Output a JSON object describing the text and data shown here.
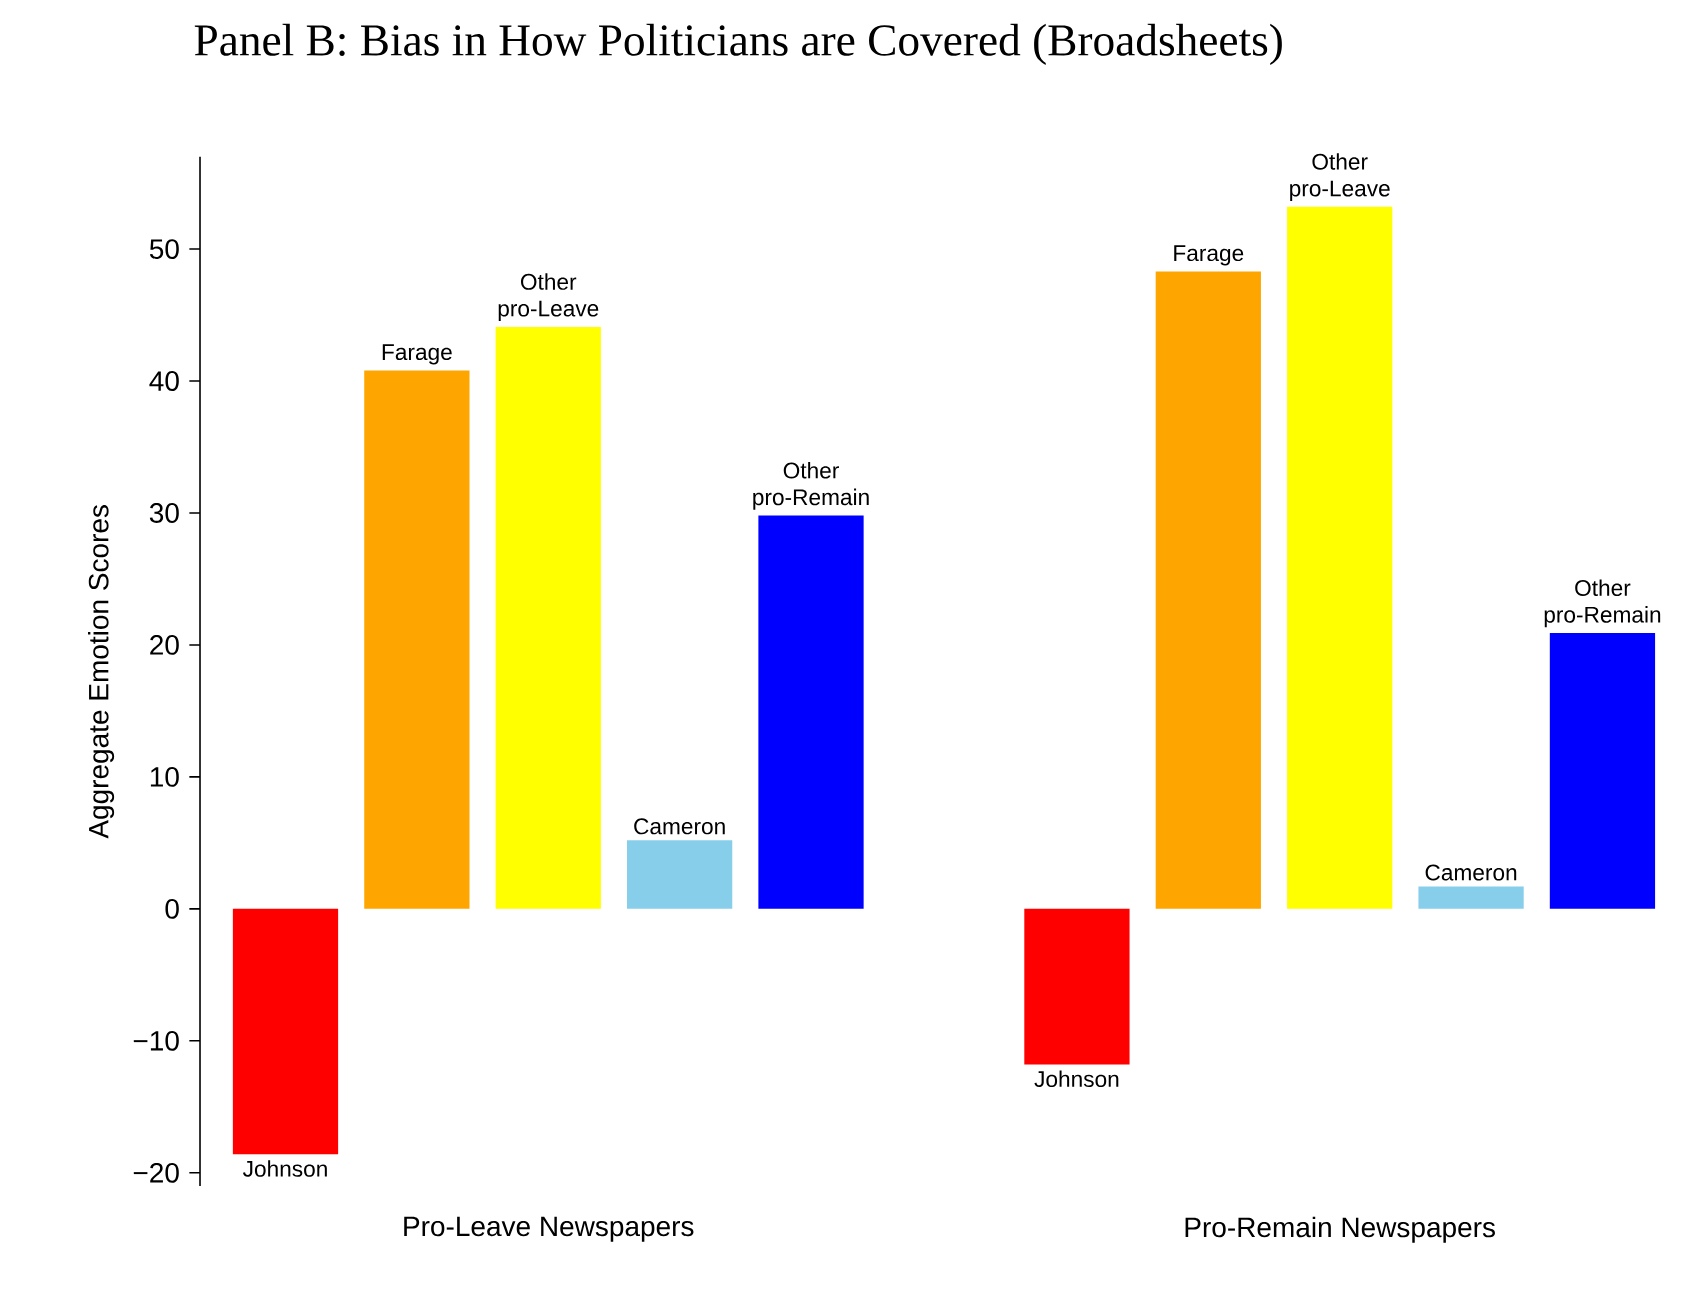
{
  "chart_data": {
    "type": "bar",
    "title": "Panel B: Bias in How Politicians are Covered (Broadsheets)",
    "ylabel": "Aggregate Emotion Scores",
    "categories": [
      "Pro-Leave Newspapers",
      "Pro-Remain Newspapers"
    ],
    "series": [
      {
        "name": "Johnson",
        "color": "#ff0000",
        "values": [
          -18.6,
          -11.8
        ]
      },
      {
        "name": "Farage",
        "color": "#ffa500",
        "values": [
          40.8,
          48.3
        ]
      },
      {
        "name": "Other pro-Leave",
        "color": "#ffff00",
        "values": [
          44.1,
          53.2
        ]
      },
      {
        "name": "Cameron",
        "color": "#87ceeb",
        "values": [
          5.2,
          1.7
        ]
      },
      {
        "name": "Other pro-Remain",
        "color": "#0000ff",
        "values": [
          29.8,
          20.9
        ]
      }
    ],
    "ylim": [
      -21,
      57
    ],
    "yticks": [
      {
        "value": -20,
        "label": "−20"
      },
      {
        "value": -10,
        "label": "−10"
      },
      0,
      10,
      20,
      30,
      40,
      50
    ],
    "grid": false,
    "legend": false
  }
}
